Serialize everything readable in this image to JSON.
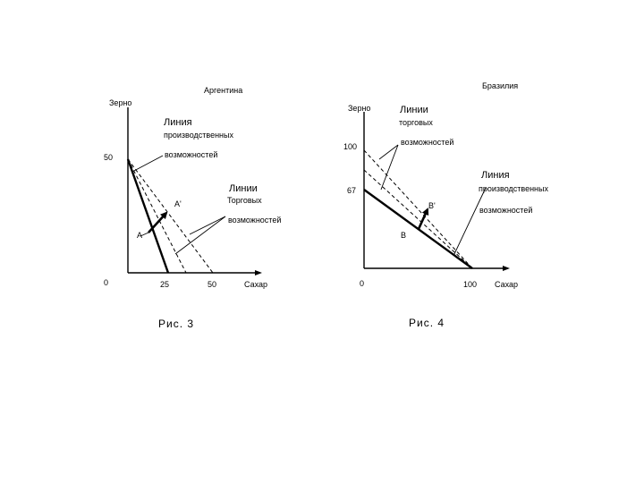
{
  "fig3": {
    "country": "Аргентина",
    "y_axis_label": "Зерно",
    "x_axis_label": "Сахар",
    "origin_label": "0",
    "y_tick": "50",
    "x_ticks": [
      "25",
      "50"
    ],
    "prod_line_label": [
      "Линия",
      "производственных",
      "возможностей"
    ],
    "trade_line_label": [
      "Линии",
      "Торговых",
      "возможностей"
    ],
    "point_a": "A",
    "point_a_prime": "A'",
    "caption": "Рис. 3"
  },
  "fig4": {
    "country": "Бразилия",
    "y_axis_label": "Зерно",
    "x_axis_label": "Сахар",
    "origin_label": "0",
    "y_ticks": [
      "100",
      "67"
    ],
    "x_tick": "100",
    "trade_line_label": [
      "Линии",
      "торговых",
      "возможностей"
    ],
    "prod_line_label": [
      "Линия",
      "производственных",
      "возможностей"
    ],
    "point_b": "B",
    "point_b_prime": "B'",
    "caption": "Рис. 4"
  },
  "colors": {
    "ink": "#000000",
    "background": "#ffffff"
  }
}
